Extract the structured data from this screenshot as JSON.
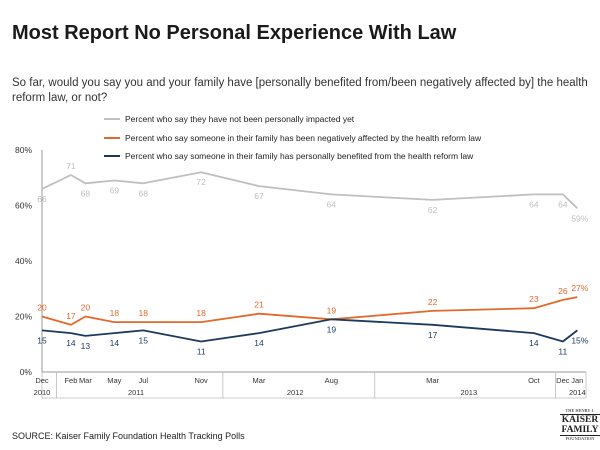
{
  "title": "Most Report No Personal Experience With Law",
  "subtitle": "So far, would you say you and your family have [personally benefited from/been negatively affected by] the health reform law, or not?",
  "source": "SOURCE: Kaiser Family Foundation Health Tracking Polls",
  "logo": {
    "line1": "THE HENRY J.",
    "line2": "KAISER",
    "line3": "FAMILY",
    "line4": "FOUNDATION"
  },
  "colors": {
    "gray": "#bfbfbf",
    "orange": "#e06a2c",
    "navy": "#1c3a5e"
  },
  "chart_data": {
    "type": "line",
    "title": "Most Report No Personal Experience With Law",
    "ylim": [
      0,
      80
    ],
    "yticks": [
      0,
      20,
      40,
      60,
      80
    ],
    "ytick_labels": [
      "0%",
      "20%",
      "40%",
      "60%",
      "80%"
    ],
    "x_months": [
      0,
      2,
      3,
      5,
      7,
      11,
      15,
      20,
      27,
      34,
      36,
      37
    ],
    "xlim": [
      0,
      37.6
    ],
    "x_tick_labels": [
      "Dec",
      "Feb",
      "Mar",
      "May",
      "Jul",
      "Nov",
      "Mar",
      "Aug",
      "Mar",
      "Oct",
      "Dec",
      "Jan"
    ],
    "year_labels": [
      {
        "label": "2010",
        "at": 0
      },
      {
        "label": "2011",
        "at": 6.5
      },
      {
        "label": "2012",
        "at": 17.5
      },
      {
        "label": "2013",
        "at": 29.5
      },
      {
        "label": "2014",
        "at": 37
      }
    ],
    "year_dividers": [
      1,
      12.5,
      23,
      35.5
    ],
    "series": [
      {
        "name": "Percent who say they have not been personally impacted yet",
        "color": "#bfbfbf",
        "values": [
          66,
          71,
          68,
          69,
          68,
          72,
          67,
          64,
          62,
          64,
          64,
          59
        ],
        "labels": [
          "66",
          "71",
          "68",
          "69",
          "68",
          "72",
          "67",
          "64",
          "62",
          "64",
          "64",
          "59%"
        ],
        "label_pos": [
          "below",
          "above",
          "below",
          "below",
          "below",
          "below",
          "below",
          "below",
          "below",
          "below",
          "below",
          "below"
        ]
      },
      {
        "name": "Percent who say someone in their family has been negatively affected by the health reform law",
        "color": "#e06a2c",
        "values": [
          20,
          17,
          20,
          18,
          18,
          18,
          21,
          19,
          22,
          23,
          26,
          27
        ],
        "labels": [
          "20",
          "17",
          "20",
          "18",
          "18",
          "18",
          "21",
          "19",
          "22",
          "23",
          "26",
          "27%"
        ],
        "label_pos": [
          "above",
          "above",
          "above",
          "above",
          "above",
          "above",
          "above",
          "above",
          "above",
          "above",
          "above",
          "above"
        ]
      },
      {
        "name": "Percent who say someone in their family has personally benefited from the health reform law",
        "color": "#1c3a5e",
        "values": [
          15,
          14,
          13,
          14,
          15,
          11,
          14,
          19,
          17,
          14,
          11,
          15
        ],
        "labels": [
          "15",
          "14",
          "13",
          "14",
          "15",
          "11",
          "14",
          "19",
          "17",
          "14",
          "11",
          "15%"
        ],
        "label_pos": [
          "below",
          "below",
          "below",
          "below",
          "below",
          "below",
          "below",
          "below",
          "below",
          "below",
          "below",
          "below"
        ]
      }
    ]
  }
}
